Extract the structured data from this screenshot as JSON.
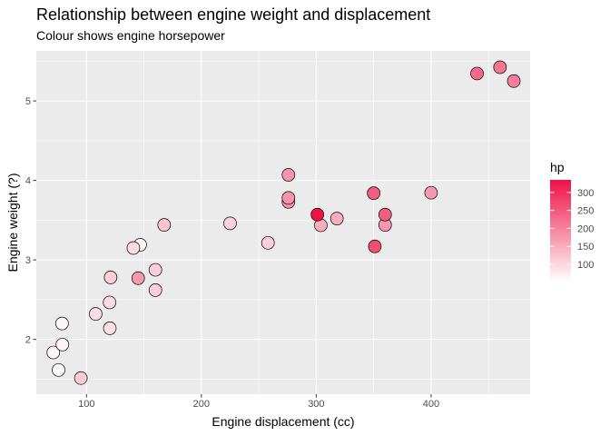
{
  "chart_data": {
    "type": "scatter",
    "title": "Relationship between engine weight and displacement",
    "subtitle": "Colour shows engine horsepower",
    "xlabel": "Engine displacement (cc)",
    "ylabel": "Engine weight (?)",
    "xlim": [
      56.3,
      486.2
    ],
    "ylim": [
      1.31,
      5.63
    ],
    "x_ticks": [
      100,
      200,
      300,
      400
    ],
    "y_ticks": [
      2,
      3,
      4,
      5
    ],
    "grid": true,
    "legend": {
      "title": "hp",
      "placement": "right",
      "breaks": [
        100,
        150,
        200,
        250,
        300
      ],
      "range": [
        52,
        335
      ],
      "low_color": "#ffffff",
      "high_color": "#ee1144"
    },
    "points": [
      {
        "x": 160.0,
        "y": 2.62,
        "hp": 110
      },
      {
        "x": 160.0,
        "y": 2.875,
        "hp": 110
      },
      {
        "x": 108.0,
        "y": 2.32,
        "hp": 93
      },
      {
        "x": 258.0,
        "y": 3.215,
        "hp": 110
      },
      {
        "x": 360.0,
        "y": 3.44,
        "hp": 175
      },
      {
        "x": 225.0,
        "y": 3.46,
        "hp": 105
      },
      {
        "x": 360.0,
        "y": 3.57,
        "hp": 245
      },
      {
        "x": 146.7,
        "y": 3.19,
        "hp": 62
      },
      {
        "x": 140.8,
        "y": 3.15,
        "hp": 95
      },
      {
        "x": 167.6,
        "y": 3.44,
        "hp": 123
      },
      {
        "x": 275.8,
        "y": 4.07,
        "hp": 180
      },
      {
        "x": 275.8,
        "y": 3.73,
        "hp": 180
      },
      {
        "x": 275.8,
        "y": 3.78,
        "hp": 180
      },
      {
        "x": 472.0,
        "y": 5.25,
        "hp": 205
      },
      {
        "x": 460.0,
        "y": 5.424,
        "hp": 215
      },
      {
        "x": 440.0,
        "y": 5.345,
        "hp": 230
      },
      {
        "x": 78.7,
        "y": 2.2,
        "hp": 66
      },
      {
        "x": 75.7,
        "y": 1.615,
        "hp": 52
      },
      {
        "x": 71.1,
        "y": 1.835,
        "hp": 65
      },
      {
        "x": 120.1,
        "y": 2.465,
        "hp": 97
      },
      {
        "x": 318.0,
        "y": 3.52,
        "hp": 150
      },
      {
        "x": 304.0,
        "y": 3.435,
        "hp": 150
      },
      {
        "x": 350.0,
        "y": 3.84,
        "hp": 245
      },
      {
        "x": 400.0,
        "y": 3.845,
        "hp": 175
      },
      {
        "x": 79.0,
        "y": 1.935,
        "hp": 66
      },
      {
        "x": 120.3,
        "y": 2.14,
        "hp": 91
      },
      {
        "x": 95.1,
        "y": 1.513,
        "hp": 113
      },
      {
        "x": 351.0,
        "y": 3.17,
        "hp": 264
      },
      {
        "x": 145.0,
        "y": 2.77,
        "hp": 175
      },
      {
        "x": 301.0,
        "y": 3.57,
        "hp": 335
      },
      {
        "x": 121.0,
        "y": 2.78,
        "hp": 109
      }
    ]
  }
}
